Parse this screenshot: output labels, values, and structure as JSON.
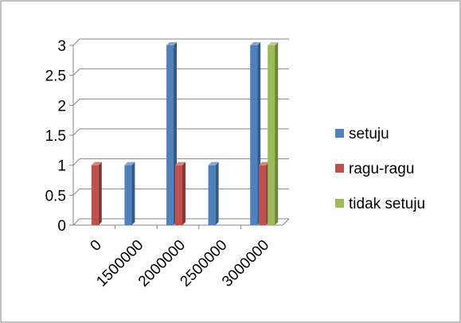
{
  "chart_data": {
    "type": "bar",
    "style": "3d-clustered-column",
    "categories": [
      "0",
      "1500000",
      "2000000",
      "2500000",
      "3000000"
    ],
    "series": [
      {
        "name": "setuju",
        "values": [
          0,
          1,
          3,
          1,
          3
        ],
        "color": "#4F81BD"
      },
      {
        "name": "ragu-ragu",
        "values": [
          1,
          0,
          1,
          0,
          1
        ],
        "color": "#C0504D"
      },
      {
        "name": "tidak setuju",
        "values": [
          0,
          0,
          0,
          0,
          3
        ],
        "color": "#9BBB59"
      }
    ],
    "y_ticks": [
      "0",
      "0.5",
      "1",
      "1.5",
      "2",
      "2.5",
      "3"
    ],
    "ylim": [
      0,
      3
    ],
    "grid": true,
    "legend_position": "right",
    "title": "",
    "xlabel": "",
    "ylabel": ""
  }
}
